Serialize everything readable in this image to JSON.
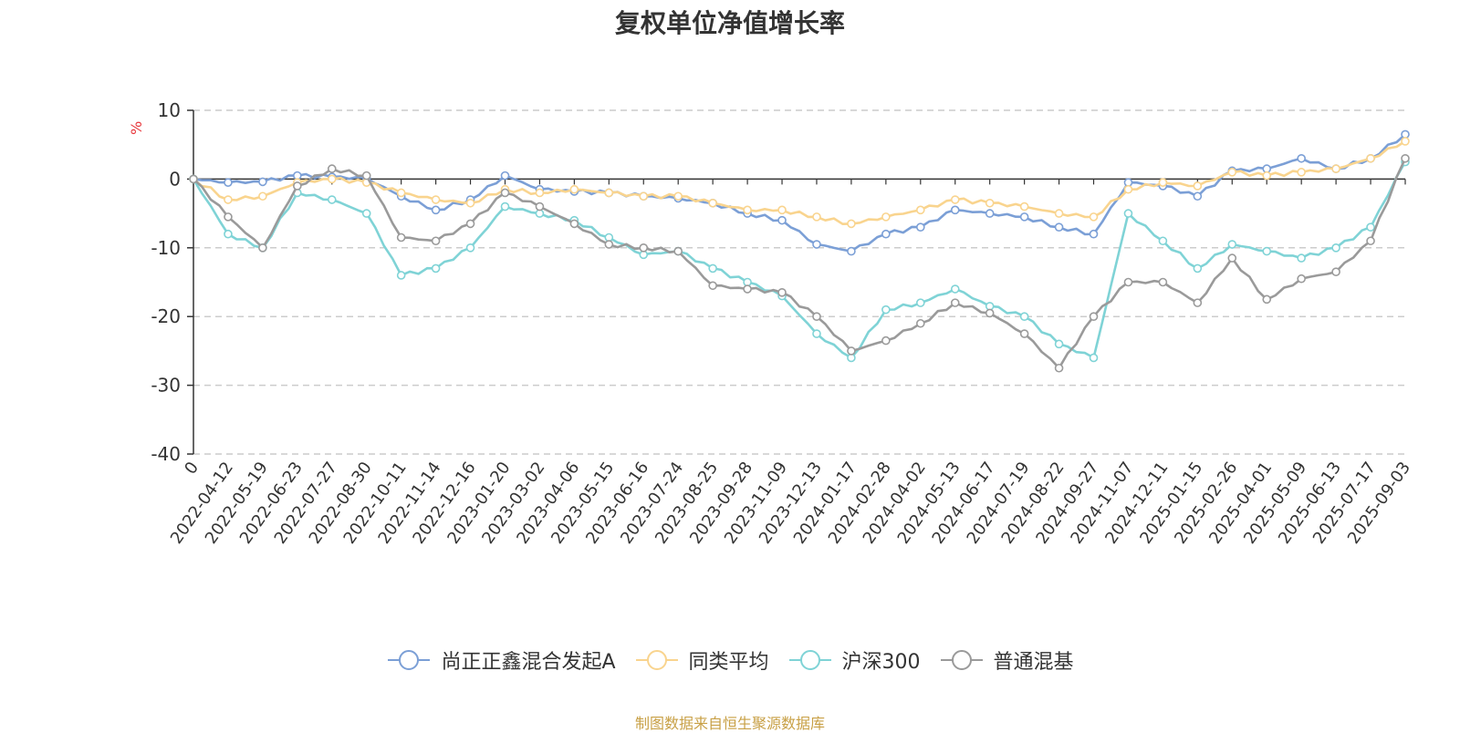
{
  "title": "复权单位净值增长率",
  "unit_label": "%",
  "source_note": "制图数据来自恒生聚源数据库",
  "chart_data": {
    "type": "line",
    "ylim": [
      -40,
      10
    ],
    "yticks": [
      10,
      0,
      -10,
      -20,
      -30,
      -40
    ],
    "grid": "horizontal dashed",
    "legend_position": "bottom-center",
    "x": [
      "0",
      "2022-04-12",
      "2022-05-19",
      "2022-06-23",
      "2022-07-27",
      "2022-08-30",
      "2022-10-11",
      "2022-11-14",
      "2022-12-16",
      "2023-01-20",
      "2023-03-02",
      "2023-04-06",
      "2023-05-15",
      "2023-06-16",
      "2023-07-24",
      "2023-08-25",
      "2023-09-28",
      "2023-11-09",
      "2023-12-13",
      "2024-01-17",
      "2024-02-28",
      "2024-04-02",
      "2024-05-13",
      "2024-06-17",
      "2024-07-19",
      "2024-08-22",
      "2024-09-27",
      "2024-11-07",
      "2024-12-11",
      "2025-01-15",
      "2025-02-26",
      "2025-04-01",
      "2025-05-09",
      "2025-06-13",
      "2025-07-17",
      "2025-09-03"
    ],
    "series": [
      {
        "name": "尚正正鑫混合发起A",
        "color": "#7b9fd6",
        "values": [
          0,
          -0.5,
          -0.4,
          0.5,
          0.3,
          0.1,
          -2.5,
          -4.5,
          -3.0,
          0.5,
          -1.5,
          -1.8,
          -2.0,
          -2.5,
          -2.8,
          -3.5,
          -5.0,
          -6.0,
          -9.5,
          -10.5,
          -8.0,
          -7.0,
          -4.5,
          -5.0,
          -5.5,
          -7.0,
          -8.0,
          -0.5,
          -1.0,
          -2.5,
          1.2,
          1.5,
          3.0,
          1.5,
          3.0,
          6.5
        ]
      },
      {
        "name": "同类平均",
        "color": "#f9d48e",
        "values": [
          0,
          -3.0,
          -2.5,
          -0.5,
          0.0,
          -0.5,
          -2.0,
          -3.0,
          -3.5,
          -1.5,
          -2.0,
          -1.5,
          -2.0,
          -2.5,
          -2.5,
          -3.5,
          -4.5,
          -4.5,
          -5.5,
          -6.5,
          -5.5,
          -4.5,
          -3.0,
          -3.5,
          -4.0,
          -5.0,
          -5.5,
          -1.5,
          -0.5,
          -1.0,
          1.0,
          0.5,
          1.0,
          1.5,
          3.0,
          5.5
        ]
      },
      {
        "name": "沪深300",
        "color": "#7fd3d6",
        "values": [
          0,
          -8.0,
          -10.0,
          -2.0,
          -3.0,
          -5.0,
          -14.0,
          -13.0,
          -10.0,
          -4.0,
          -5.0,
          -6.0,
          -8.5,
          -11.0,
          -10.5,
          -13.0,
          -15.0,
          -17.0,
          -22.5,
          -26.0,
          -19.0,
          -18.0,
          -16.0,
          -18.5,
          -20.0,
          -24.0,
          -26.0,
          -5.0,
          -9.0,
          -13.0,
          -9.5,
          -10.5,
          -11.5,
          -10.0,
          -7.0,
          2.5
        ]
      },
      {
        "name": "普通混基",
        "color": "#9a9a9a",
        "values": [
          0,
          -5.5,
          -10.0,
          -1.0,
          1.5,
          0.5,
          -8.5,
          -9.0,
          -6.5,
          -2.0,
          -4.0,
          -6.5,
          -9.5,
          -10.0,
          -10.5,
          -15.5,
          -16.0,
          -16.5,
          -20.0,
          -25.0,
          -23.5,
          -21.0,
          -18.0,
          -19.5,
          -22.5,
          -27.5,
          -20.0,
          -15.0,
          -15.0,
          -18.0,
          -11.5,
          -17.5,
          -14.5,
          -13.5,
          -9.0,
          3.0
        ]
      }
    ]
  }
}
